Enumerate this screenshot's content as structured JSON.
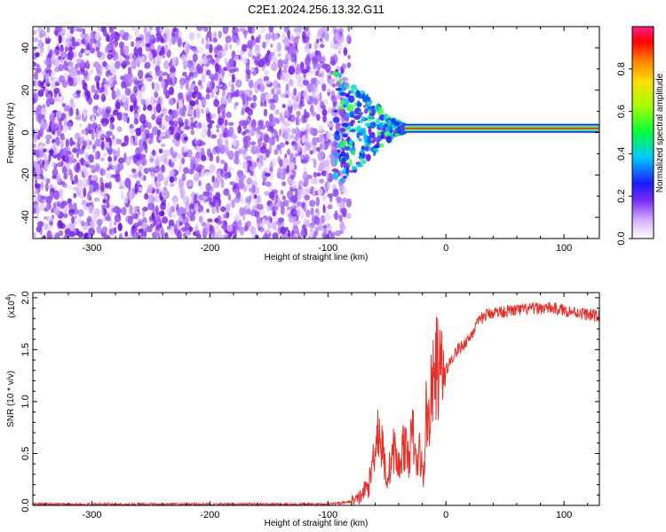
{
  "title": "C2E1.2024.256.13.32.G11",
  "chart_data": [
    {
      "type": "heatmap",
      "xlabel": "Height of straight line (km)",
      "ylabel": "Frequency (Hz)",
      "xlim": [
        -350,
        130
      ],
      "ylim": [
        -50,
        50
      ],
      "xticks": [
        -300,
        -200,
        -100,
        0,
        100
      ],
      "yticks": [
        -40,
        -20,
        0,
        20,
        40
      ],
      "colorbar": {
        "label": "Normalized spectral amplitude",
        "range": [
          0,
          1
        ],
        "ticks": [
          0.0,
          0.2,
          0.4,
          0.6,
          0.8
        ],
        "tick_labels": [
          "0.0",
          "0.2",
          "0.4",
          "0.6",
          "0.8"
        ]
      },
      "description_values": {
        "noise_region_x": [
          -350,
          -90
        ],
        "signal_frequency_hz": 2,
        "signal_start_x": -90
      }
    },
    {
      "type": "line",
      "xlabel": "Height of straight line (km)",
      "ylabel": "SNR (10 * v/v)",
      "y_multiplier_label": "(x10",
      "y_multiplier_exp": "4",
      "y_multiplier_close": ")",
      "xlim": [
        -350,
        130
      ],
      "ylim": [
        0,
        2.05
      ],
      "xticks": [
        -300,
        -200,
        -100,
        0,
        100
      ],
      "yticks": [
        0.0,
        0.5,
        1.0,
        1.5,
        2.0
      ],
      "ytick_labels": [
        "0.0",
        "0.5",
        "1.0",
        "1.5",
        "2.0"
      ],
      "color": "#e8302a",
      "series": [
        {
          "x": [
            -350,
            -300,
            -250,
            -200,
            -150,
            -110,
            -90,
            -75,
            -65,
            -58,
            -54,
            -50,
            -47,
            -44,
            -40,
            -36,
            -32,
            -28,
            -25,
            -22,
            -19,
            -17,
            -15,
            -12,
            -8,
            -4,
            0,
            5,
            10,
            15,
            20,
            25,
            30,
            35,
            40,
            50,
            60,
            70,
            80,
            90,
            100,
            110,
            120,
            130
          ],
          "y": [
            0.01,
            0.01,
            0.01,
            0.01,
            0.01,
            0.01,
            0.02,
            0.05,
            0.2,
            0.75,
            0.55,
            0.25,
            0.4,
            0.55,
            0.35,
            0.6,
            0.45,
            0.7,
            0.35,
            0.55,
            0.2,
            0.9,
            0.8,
            1.1,
            1.35,
            1.25,
            1.3,
            1.42,
            1.5,
            1.55,
            1.62,
            1.72,
            1.8,
            1.84,
            1.86,
            1.87,
            1.88,
            1.89,
            1.9,
            1.9,
            1.88,
            1.86,
            1.84,
            1.82
          ]
        }
      ]
    }
  ]
}
